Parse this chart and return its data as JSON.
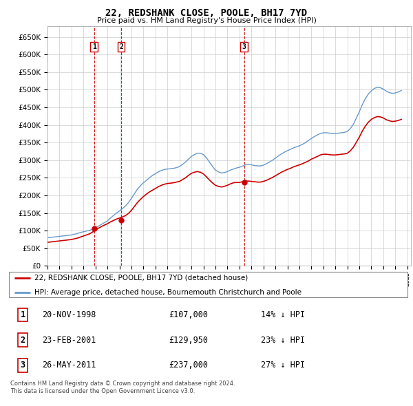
{
  "title": "22, REDSHANK CLOSE, POOLE, BH17 7YD",
  "subtitle": "Price paid vs. HM Land Registry's House Price Index (HPI)",
  "legend_line1": "22, REDSHANK CLOSE, POOLE, BH17 7YD (detached house)",
  "legend_line2": "HPI: Average price, detached house, Bournemouth Christchurch and Poole",
  "copyright": "Contains HM Land Registry data © Crown copyright and database right 2024.\nThis data is licensed under the Open Government Licence v3.0.",
  "sale_color": "#cc0000",
  "hpi_color": "#6699cc",
  "background_color": "#ffffff",
  "grid_color": "#cccccc",
  "ylim": [
    0,
    680000
  ],
  "yticks": [
    0,
    50000,
    100000,
    150000,
    200000,
    250000,
    300000,
    350000,
    400000,
    450000,
    500000,
    550000,
    600000,
    650000
  ],
  "sales": [
    {
      "year": 1998.88,
      "price": 107000,
      "label": "1"
    },
    {
      "year": 2001.14,
      "price": 129950,
      "label": "2"
    },
    {
      "year": 2011.39,
      "price": 237000,
      "label": "3"
    }
  ],
  "table_rows": [
    {
      "num": "1",
      "date": "20-NOV-1998",
      "price": "£107,000",
      "hpi": "14% ↓ HPI"
    },
    {
      "num": "2",
      "date": "23-FEB-2001",
      "price": "£129,950",
      "hpi": "23% ↓ HPI"
    },
    {
      "num": "3",
      "date": "26-MAY-2011",
      "price": "£237,000",
      "hpi": "27% ↓ HPI"
    }
  ],
  "hpi_years": [
    1995.0,
    1995.25,
    1995.5,
    1995.75,
    1996.0,
    1996.25,
    1996.5,
    1996.75,
    1997.0,
    1997.25,
    1997.5,
    1997.75,
    1998.0,
    1998.25,
    1998.5,
    1998.75,
    1999.0,
    1999.25,
    1999.5,
    1999.75,
    2000.0,
    2000.25,
    2000.5,
    2000.75,
    2001.0,
    2001.25,
    2001.5,
    2001.75,
    2002.0,
    2002.25,
    2002.5,
    2002.75,
    2003.0,
    2003.25,
    2003.5,
    2003.75,
    2004.0,
    2004.25,
    2004.5,
    2004.75,
    2005.0,
    2005.25,
    2005.5,
    2005.75,
    2006.0,
    2006.25,
    2006.5,
    2006.75,
    2007.0,
    2007.25,
    2007.5,
    2007.75,
    2008.0,
    2008.25,
    2008.5,
    2008.75,
    2009.0,
    2009.25,
    2009.5,
    2009.75,
    2010.0,
    2010.25,
    2010.5,
    2010.75,
    2011.0,
    2011.25,
    2011.5,
    2011.75,
    2012.0,
    2012.25,
    2012.5,
    2012.75,
    2013.0,
    2013.25,
    2013.5,
    2013.75,
    2014.0,
    2014.25,
    2014.5,
    2014.75,
    2015.0,
    2015.25,
    2015.5,
    2015.75,
    2016.0,
    2016.25,
    2016.5,
    2016.75,
    2017.0,
    2017.25,
    2017.5,
    2017.75,
    2018.0,
    2018.25,
    2018.5,
    2018.75,
    2019.0,
    2019.25,
    2019.5,
    2019.75,
    2020.0,
    2020.25,
    2020.5,
    2020.75,
    2021.0,
    2021.25,
    2021.5,
    2021.75,
    2022.0,
    2022.25,
    2022.5,
    2022.75,
    2023.0,
    2023.25,
    2023.5,
    2023.75,
    2024.0,
    2024.25,
    2024.5
  ],
  "hpi_values": [
    80000,
    81000,
    82000,
    83000,
    84000,
    85000,
    86000,
    87000,
    88000,
    90000,
    92000,
    95000,
    97000,
    99000,
    101000,
    104000,
    108000,
    113000,
    118000,
    123000,
    128000,
    136000,
    143000,
    150000,
    156000,
    163000,
    170000,
    180000,
    192000,
    205000,
    218000,
    228000,
    236000,
    243000,
    250000,
    257000,
    262000,
    267000,
    271000,
    274000,
    275000,
    276000,
    277000,
    279000,
    282000,
    288000,
    295000,
    303000,
    311000,
    316000,
    320000,
    320000,
    316000,
    307000,
    295000,
    283000,
    272000,
    267000,
    264000,
    265000,
    268000,
    272000,
    275000,
    278000,
    280000,
    283000,
    287000,
    288000,
    287000,
    285000,
    284000,
    284000,
    286000,
    290000,
    295000,
    300000,
    306000,
    312000,
    318000,
    323000,
    327000,
    331000,
    335000,
    338000,
    341000,
    345000,
    350000,
    356000,
    362000,
    367000,
    372000,
    376000,
    378000,
    378000,
    377000,
    376000,
    376000,
    377000,
    378000,
    379000,
    382000,
    390000,
    402000,
    420000,
    438000,
    458000,
    475000,
    488000,
    497000,
    504000,
    507000,
    506000,
    502000,
    496000,
    492000,
    490000,
    491000,
    494000,
    498000
  ],
  "sale_years": [
    1995.0,
    1995.25,
    1995.5,
    1995.75,
    1996.0,
    1996.25,
    1996.5,
    1996.75,
    1997.0,
    1997.25,
    1997.5,
    1997.75,
    1998.0,
    1998.25,
    1998.5,
    1998.75,
    1999.0,
    1999.25,
    1999.5,
    1999.75,
    2000.0,
    2000.25,
    2000.5,
    2000.75,
    2001.0,
    2001.25,
    2001.5,
    2001.75,
    2002.0,
    2002.25,
    2002.5,
    2002.75,
    2003.0,
    2003.25,
    2003.5,
    2003.75,
    2004.0,
    2004.25,
    2004.5,
    2004.75,
    2005.0,
    2005.25,
    2005.5,
    2005.75,
    2006.0,
    2006.25,
    2006.5,
    2006.75,
    2007.0,
    2007.25,
    2007.5,
    2007.75,
    2008.0,
    2008.25,
    2008.5,
    2008.75,
    2009.0,
    2009.25,
    2009.5,
    2009.75,
    2010.0,
    2010.25,
    2010.5,
    2010.75,
    2011.0,
    2011.25,
    2011.5,
    2011.75,
    2012.0,
    2012.25,
    2012.5,
    2012.75,
    2013.0,
    2013.25,
    2013.5,
    2013.75,
    2014.0,
    2014.25,
    2014.5,
    2014.75,
    2015.0,
    2015.25,
    2015.5,
    2015.75,
    2016.0,
    2016.25,
    2016.5,
    2016.75,
    2017.0,
    2017.25,
    2017.5,
    2017.75,
    2018.0,
    2018.25,
    2018.5,
    2018.75,
    2019.0,
    2019.25,
    2019.5,
    2019.75,
    2020.0,
    2020.25,
    2020.5,
    2020.75,
    2021.0,
    2021.25,
    2021.5,
    2021.75,
    2022.0,
    2022.25,
    2022.5,
    2022.75,
    2023.0,
    2023.25,
    2023.5,
    2023.75,
    2024.0,
    2024.25,
    2024.5
  ],
  "sale_values": [
    67000,
    68000,
    69000,
    70000,
    71000,
    72000,
    73000,
    74000,
    75000,
    77000,
    79000,
    82000,
    85000,
    88000,
    91000,
    96000,
    102000,
    107000,
    112000,
    116000,
    120000,
    125000,
    129000,
    133000,
    136000,
    139000,
    143000,
    149000,
    158000,
    169000,
    180000,
    189000,
    197000,
    204000,
    210000,
    215000,
    220000,
    225000,
    229000,
    232000,
    234000,
    235000,
    236000,
    238000,
    240000,
    245000,
    250000,
    257000,
    263000,
    266000,
    268000,
    266000,
    261000,
    253000,
    244000,
    236000,
    229000,
    226000,
    224000,
    226000,
    229000,
    233000,
    236000,
    237000,
    237000,
    239000,
    241000,
    241000,
    240000,
    239000,
    238000,
    238000,
    240000,
    243000,
    247000,
    251000,
    256000,
    261000,
    266000,
    270000,
    274000,
    277000,
    281000,
    284000,
    287000,
    290000,
    294000,
    298000,
    303000,
    307000,
    311000,
    315000,
    317000,
    317000,
    316000,
    315000,
    315000,
    316000,
    317000,
    318000,
    320000,
    327000,
    337000,
    351000,
    366000,
    383000,
    397000,
    408000,
    416000,
    421000,
    424000,
    423000,
    420000,
    415000,
    412000,
    410000,
    411000,
    413000,
    416000
  ]
}
